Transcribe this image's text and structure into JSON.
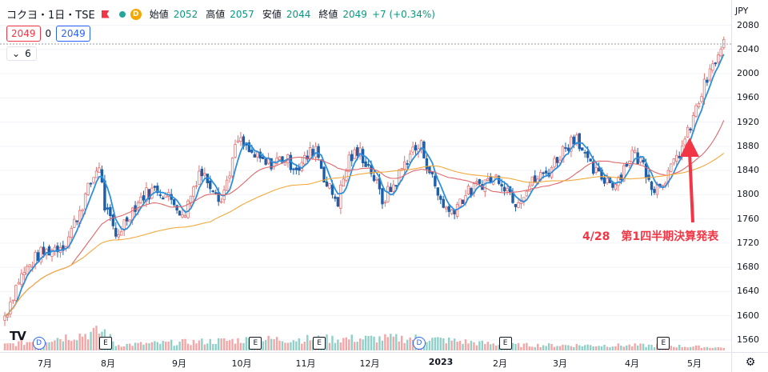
{
  "header": {
    "symbol": "コクヨ・1日・TSE",
    "d_badge": "D",
    "ohlc": [
      {
        "label": "始値",
        "value": "2052"
      },
      {
        "label": "高値",
        "value": "2057"
      },
      {
        "label": "安値",
        "value": "2044"
      },
      {
        "label": "終値",
        "value": "2049"
      }
    ],
    "change": "+7 (+0.34%)",
    "bid": "2049",
    "spread": "0",
    "ask": "2049",
    "indicators_count": "6",
    "currency": "JPY"
  },
  "annotation": "4/28　第1四半期決算発表",
  "logo_text": "TV",
  "price_ticks": [
    "2080",
    "2040",
    "2000",
    "1960",
    "1920",
    "1880",
    "1840",
    "1800",
    "1760",
    "1720",
    "1680",
    "1640",
    "1600",
    "1560"
  ],
  "time_ticks": [
    {
      "label": "7月",
      "bold": false
    },
    {
      "label": "8月",
      "bold": false
    },
    {
      "label": "9月",
      "bold": false
    },
    {
      "label": "10月",
      "bold": false
    },
    {
      "label": "11月",
      "bold": false
    },
    {
      "label": "12月",
      "bold": false
    },
    {
      "label": "2023",
      "bold": true
    },
    {
      "label": "2月",
      "bold": false
    },
    {
      "label": "3月",
      "bold": false
    },
    {
      "label": "4月",
      "bold": false
    },
    {
      "label": "5月",
      "bold": false
    }
  ],
  "event_markers": [
    {
      "type": "D",
      "label": "D",
      "index": 12
    },
    {
      "type": "E",
      "label": "E",
      "index": 36
    },
    {
      "type": "E",
      "label": "E",
      "index": 90
    },
    {
      "type": "E",
      "label": "E",
      "index": 113
    },
    {
      "type": "D",
      "label": "D",
      "index": 149
    },
    {
      "type": "E",
      "label": "E",
      "index": 180
    },
    {
      "type": "E",
      "label": "E",
      "index": 237
    }
  ],
  "colors": {
    "up": "#ef9a9a",
    "up_border": "#e57373",
    "down": "#1e5fa8",
    "ma_short": "#2d8fdc",
    "ma_mid": "#e0686b",
    "ma_long": "#f2a93b",
    "vol_up": "#f4a6a6",
    "vol_down": "#8fd1c8",
    "annotation": "#f23645"
  },
  "chart_data": {
    "type": "candlestick",
    "title": "コクヨ・1日・TSE",
    "ylim": [
      1540,
      2090
    ],
    "candles": [],
    "anchors": [
      [
        0,
        1600
      ],
      [
        5,
        1660
      ],
      [
        12,
        1700
      ],
      [
        22,
        1720
      ],
      [
        32,
        1830
      ],
      [
        34,
        1850
      ],
      [
        36,
        1780
      ],
      [
        40,
        1730
      ],
      [
        45,
        1770
      ],
      [
        50,
        1800
      ],
      [
        55,
        1810
      ],
      [
        62,
        1785
      ],
      [
        64,
        1760
      ],
      [
        70,
        1840
      ],
      [
        76,
        1810
      ],
      [
        78,
        1790
      ],
      [
        84,
        1890
      ],
      [
        88,
        1870
      ],
      [
        94,
        1850
      ],
      [
        100,
        1860
      ],
      [
        106,
        1845
      ],
      [
        112,
        1880
      ],
      [
        116,
        1815
      ],
      [
        120,
        1790
      ],
      [
        124,
        1860
      ],
      [
        128,
        1870
      ],
      [
        132,
        1840
      ],
      [
        136,
        1790
      ],
      [
        140,
        1815
      ],
      [
        146,
        1870
      ],
      [
        150,
        1880
      ],
      [
        156,
        1800
      ],
      [
        160,
        1770
      ],
      [
        166,
        1800
      ],
      [
        172,
        1820
      ],
      [
        178,
        1830
      ],
      [
        184,
        1790
      ],
      [
        190,
        1820
      ],
      [
        196,
        1840
      ],
      [
        202,
        1880
      ],
      [
        206,
        1900
      ],
      [
        210,
        1850
      ],
      [
        214,
        1830
      ],
      [
        220,
        1820
      ],
      [
        226,
        1870
      ],
      [
        230,
        1850
      ],
      [
        234,
        1810
      ],
      [
        240,
        1840
      ],
      [
        246,
        1900
      ],
      [
        252,
        1980
      ],
      [
        256,
        2020
      ],
      [
        259,
        2049
      ]
    ],
    "volume_anchors": [
      [
        0,
        20
      ],
      [
        36,
        70
      ],
      [
        40,
        20
      ],
      [
        90,
        40
      ],
      [
        150,
        45
      ],
      [
        180,
        20
      ],
      [
        237,
        18
      ],
      [
        259,
        10
      ]
    ],
    "moving_averages": [
      {
        "period": 5,
        "color": "#2d8fdc"
      },
      {
        "period": 25,
        "color": "#e0686b"
      },
      {
        "period": 75,
        "color": "#f2a93b"
      }
    ],
    "last_price": 2049
  }
}
